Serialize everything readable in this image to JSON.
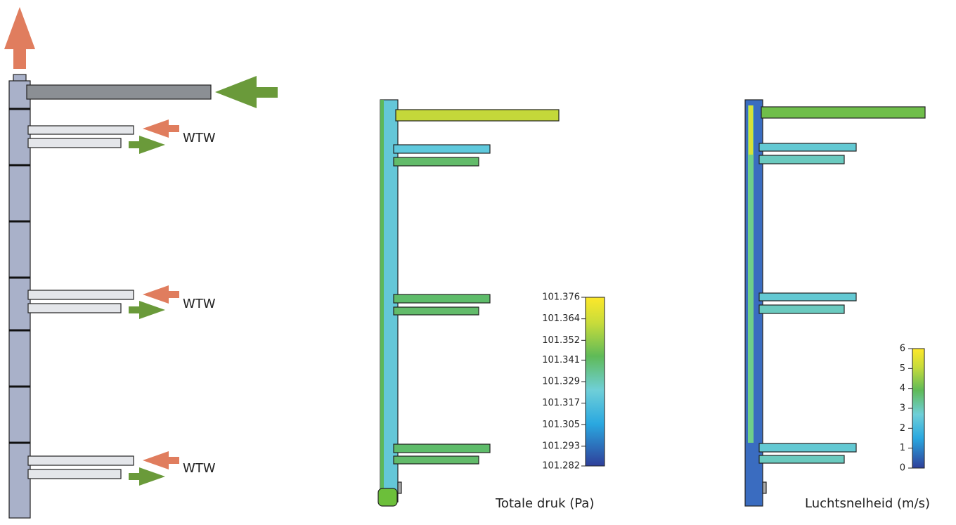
{
  "labels": [
    "WTW",
    "WTW",
    "WTW"
  ],
  "pressure_legend": {
    "title": "Totale druk (Pa)",
    "ticks": [
      101.282,
      101.293,
      101.305,
      101.317,
      101.329,
      101.341,
      101.352,
      101.364,
      101.376
    ]
  },
  "velocity_legend": {
    "title": "Luchtsnelheid (m/s)",
    "ticks": [
      0,
      1,
      2,
      3,
      4,
      5,
      6
    ]
  }
}
